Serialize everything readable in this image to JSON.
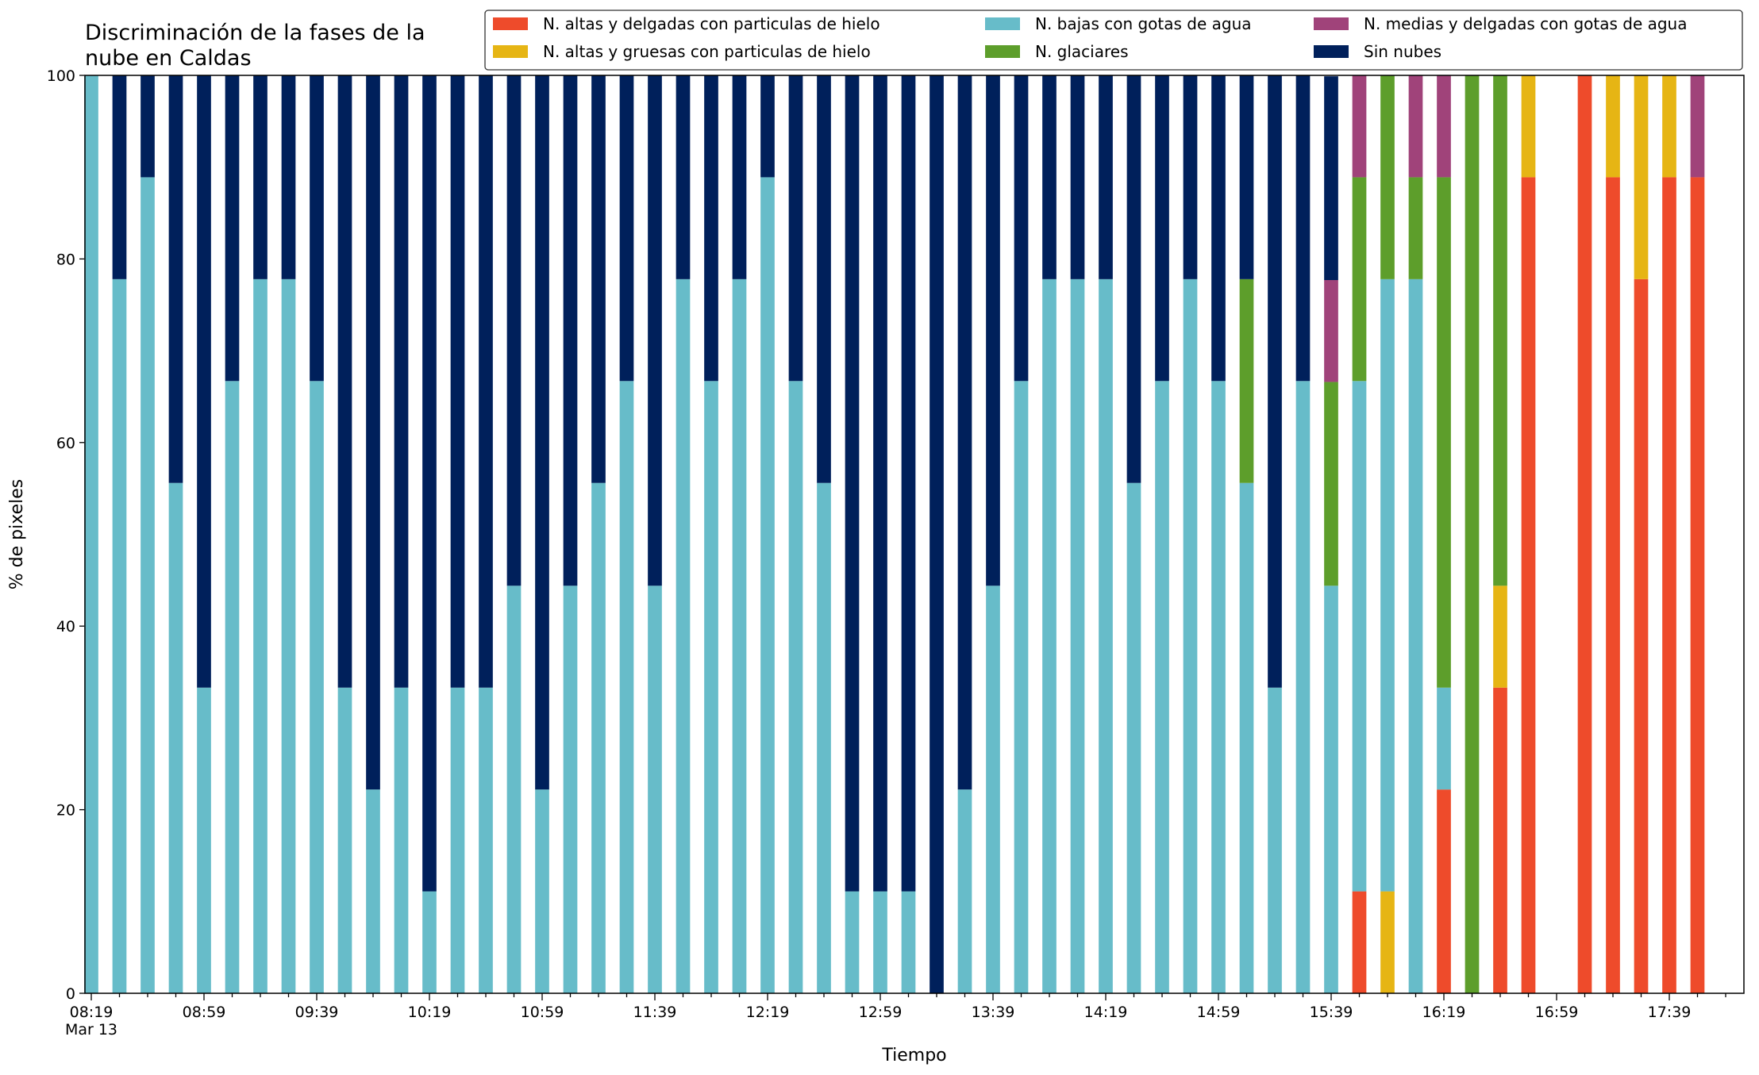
{
  "chart_data": {
    "type": "bar",
    "stacked": true,
    "title": "Discriminación de la fases de la\nnube en Caldas",
    "xlabel": "Tiempo",
    "ylabel": "% de pixeles",
    "ylim": [
      0,
      100
    ],
    "yticks": [
      0,
      20,
      40,
      60,
      80,
      100
    ],
    "grid": false,
    "legend_position": "top-right",
    "legend": [
      {
        "key": "alt_del_hielo",
        "label": "N. altas y delgadas con particulas de hielo",
        "color": "#ee4b2b"
      },
      {
        "key": "alt_grue_hielo",
        "label": "N. altas y gruesas con particulas de hielo",
        "color": "#e6b514"
      },
      {
        "key": "bajas_agua",
        "label": "N. bajas con gotas de agua",
        "color": "#67bcc9"
      },
      {
        "key": "glaciares",
        "label": "N. glaciares",
        "color": "#5d9e2b"
      },
      {
        "key": "medias_agua",
        "label": "N. medias y delgadas con gotas de agua",
        "color": "#a0437a"
      },
      {
        "key": "sin_nubes",
        "label": "Sin nubes",
        "color": "#00205b"
      }
    ],
    "stack_order": [
      "alt_del_hielo",
      "alt_grue_hielo",
      "bajas_agua",
      "glaciares",
      "medias_agua",
      "sin_nubes"
    ],
    "x_start_time": "08:19",
    "x_step_minutes": 10,
    "major_tick_labels": [
      {
        "slot": 0,
        "label": "08:19",
        "sublabel": "Mar 13"
      },
      {
        "slot": 4,
        "label": "08:59"
      },
      {
        "slot": 8,
        "label": "09:39"
      },
      {
        "slot": 12,
        "label": "10:19"
      },
      {
        "slot": 16,
        "label": "10:59"
      },
      {
        "slot": 20,
        "label": "11:39"
      },
      {
        "slot": 24,
        "label": "12:19"
      },
      {
        "slot": 28,
        "label": "12:59"
      },
      {
        "slot": 32,
        "label": "13:39"
      },
      {
        "slot": 36,
        "label": "14:19"
      },
      {
        "slot": 40,
        "label": "14:59"
      },
      {
        "slot": 44,
        "label": "15:39"
      },
      {
        "slot": 48,
        "label": "16:19"
      },
      {
        "slot": 52,
        "label": "16:59"
      },
      {
        "slot": 56,
        "label": "17:39"
      }
    ],
    "bars": [
      {
        "time": "08:19",
        "values": [
          0,
          0,
          100,
          0,
          0,
          0
        ]
      },
      {
        "time": "08:29",
        "values": [
          0,
          0,
          77.8,
          0,
          0,
          22.2
        ]
      },
      {
        "time": "08:39",
        "values": [
          0,
          0,
          88.9,
          0,
          0,
          11.1
        ]
      },
      {
        "time": "08:49",
        "values": [
          0,
          0,
          55.6,
          0,
          0,
          44.4
        ]
      },
      {
        "time": "08:59",
        "values": [
          0,
          0,
          33.3,
          0,
          0,
          66.7
        ]
      },
      {
        "time": "09:09",
        "values": [
          0,
          0,
          66.7,
          0,
          0,
          33.3
        ]
      },
      {
        "time": "09:19",
        "values": [
          0,
          0,
          77.8,
          0,
          0,
          22.2
        ]
      },
      {
        "time": "09:29",
        "values": [
          0,
          0,
          77.8,
          0,
          0,
          22.2
        ]
      },
      {
        "time": "09:39",
        "values": [
          0,
          0,
          66.7,
          0,
          0,
          33.3
        ]
      },
      {
        "time": "09:49",
        "values": [
          0,
          0,
          33.3,
          0,
          0,
          66.7
        ]
      },
      {
        "time": "09:59",
        "values": [
          0,
          0,
          22.2,
          0,
          0,
          77.8
        ]
      },
      {
        "time": "10:09",
        "values": [
          0,
          0,
          33.3,
          0,
          0,
          66.7
        ]
      },
      {
        "time": "10:19",
        "values": [
          0,
          0,
          11.1,
          0,
          0,
          88.9
        ]
      },
      {
        "time": "10:29",
        "values": [
          0,
          0,
          33.3,
          0,
          0,
          66.7
        ]
      },
      {
        "time": "10:39",
        "values": [
          0,
          0,
          33.3,
          0,
          0,
          66.7
        ]
      },
      {
        "time": "10:49",
        "values": [
          0,
          0,
          44.4,
          0,
          0,
          55.6
        ]
      },
      {
        "time": "10:59",
        "values": [
          0,
          0,
          22.2,
          0,
          0,
          77.8
        ]
      },
      {
        "time": "11:09",
        "values": [
          0,
          0,
          44.4,
          0,
          0,
          55.6
        ]
      },
      {
        "time": "11:19",
        "values": [
          0,
          0,
          55.6,
          0,
          0,
          44.4
        ]
      },
      {
        "time": "11:29",
        "values": [
          0,
          0,
          66.7,
          0,
          0,
          33.3
        ]
      },
      {
        "time": "11:39",
        "values": [
          0,
          0,
          44.4,
          0,
          0,
          55.6
        ]
      },
      {
        "time": "11:49",
        "values": [
          0,
          0,
          77.8,
          0,
          0,
          22.2
        ]
      },
      {
        "time": "11:59",
        "values": [
          0,
          0,
          66.7,
          0,
          0,
          33.3
        ]
      },
      {
        "time": "12:09",
        "values": [
          0,
          0,
          77.8,
          0,
          0,
          22.2
        ]
      },
      {
        "time": "12:19",
        "values": [
          0,
          0,
          88.9,
          0,
          0,
          11.1
        ]
      },
      {
        "time": "12:29",
        "values": [
          0,
          0,
          66.7,
          0,
          0,
          33.3
        ]
      },
      {
        "time": "12:39",
        "values": [
          0,
          0,
          55.6,
          0,
          0,
          44.4
        ]
      },
      {
        "time": "12:49",
        "values": [
          0,
          0,
          11.1,
          0,
          0,
          88.9
        ]
      },
      {
        "time": "12:59",
        "values": [
          0,
          0,
          11.1,
          0,
          0,
          88.9
        ]
      },
      {
        "time": "13:09",
        "values": [
          0,
          0,
          11.1,
          0,
          0,
          88.9
        ]
      },
      {
        "time": "13:19",
        "values": [
          0,
          0,
          0,
          0,
          0,
          100
        ]
      },
      {
        "time": "13:29",
        "values": [
          0,
          0,
          22.2,
          0,
          0,
          77.8
        ]
      },
      {
        "time": "13:39",
        "values": [
          0,
          0,
          44.4,
          0,
          0,
          55.6
        ]
      },
      {
        "time": "13:49",
        "values": [
          0,
          0,
          66.7,
          0,
          0,
          33.3
        ]
      },
      {
        "time": "13:59",
        "values": [
          0,
          0,
          77.8,
          0,
          0,
          22.2
        ]
      },
      {
        "time": "14:09",
        "values": [
          0,
          0,
          77.8,
          0,
          0,
          22.2
        ]
      },
      {
        "time": "14:19",
        "values": [
          0,
          0,
          77.8,
          0,
          0,
          22.2
        ]
      },
      {
        "time": "14:29",
        "values": [
          0,
          0,
          55.6,
          0,
          0,
          44.4
        ]
      },
      {
        "time": "14:39",
        "values": [
          0,
          0,
          66.7,
          0,
          0,
          33.3
        ]
      },
      {
        "time": "14:49",
        "values": [
          0,
          0,
          77.8,
          0,
          0,
          22.2
        ]
      },
      {
        "time": "14:59",
        "values": [
          0,
          0,
          66.7,
          0,
          0,
          33.3
        ]
      },
      {
        "time": "15:09",
        "values": [
          0,
          0,
          55.6,
          22.2,
          0,
          22.2
        ]
      },
      {
        "time": "15:19",
        "values": [
          0,
          0,
          33.3,
          0,
          0,
          66.7
        ]
      },
      {
        "time": "15:29",
        "values": [
          0,
          0,
          66.7,
          0,
          0,
          33.3
        ]
      },
      {
        "time": "15:39",
        "values": [
          0,
          0,
          44.4,
          22.2,
          11.1,
          22.2
        ]
      },
      {
        "time": "15:49",
        "values": [
          11.1,
          0,
          55.6,
          22.2,
          11.1,
          0
        ]
      },
      {
        "time": "15:59",
        "values": [
          0,
          11.1,
          66.7,
          22.2,
          0,
          0
        ]
      },
      {
        "time": "16:09",
        "values": [
          0,
          0,
          77.8,
          11.1,
          11.1,
          0
        ]
      },
      {
        "time": "16:19",
        "values": [
          22.2,
          0,
          11.1,
          55.6,
          11.1,
          0
        ]
      },
      {
        "time": "16:29",
        "values": [
          0,
          0,
          0,
          100,
          0,
          0
        ]
      },
      {
        "time": "16:39",
        "values": [
          33.3,
          11.1,
          0,
          55.6,
          0,
          0
        ]
      },
      {
        "time": "16:49",
        "values": [
          88.9,
          11.1,
          0,
          0,
          0,
          0
        ]
      },
      {
        "time": "16:59",
        "values": [
          0,
          0,
          0,
          0,
          0,
          0
        ]
      },
      {
        "time": "17:09",
        "values": [
          100,
          0,
          0,
          0,
          0,
          0
        ]
      },
      {
        "time": "17:19",
        "values": [
          88.9,
          11.1,
          0,
          0,
          0,
          0
        ]
      },
      {
        "time": "17:29",
        "values": [
          77.8,
          22.2,
          0,
          0,
          0,
          0
        ]
      },
      {
        "time": "17:39",
        "values": [
          88.9,
          11.1,
          0,
          0,
          0,
          0
        ]
      },
      {
        "time": "17:49",
        "values": [
          88.9,
          0,
          0,
          0,
          11.1,
          0
        ]
      }
    ]
  }
}
